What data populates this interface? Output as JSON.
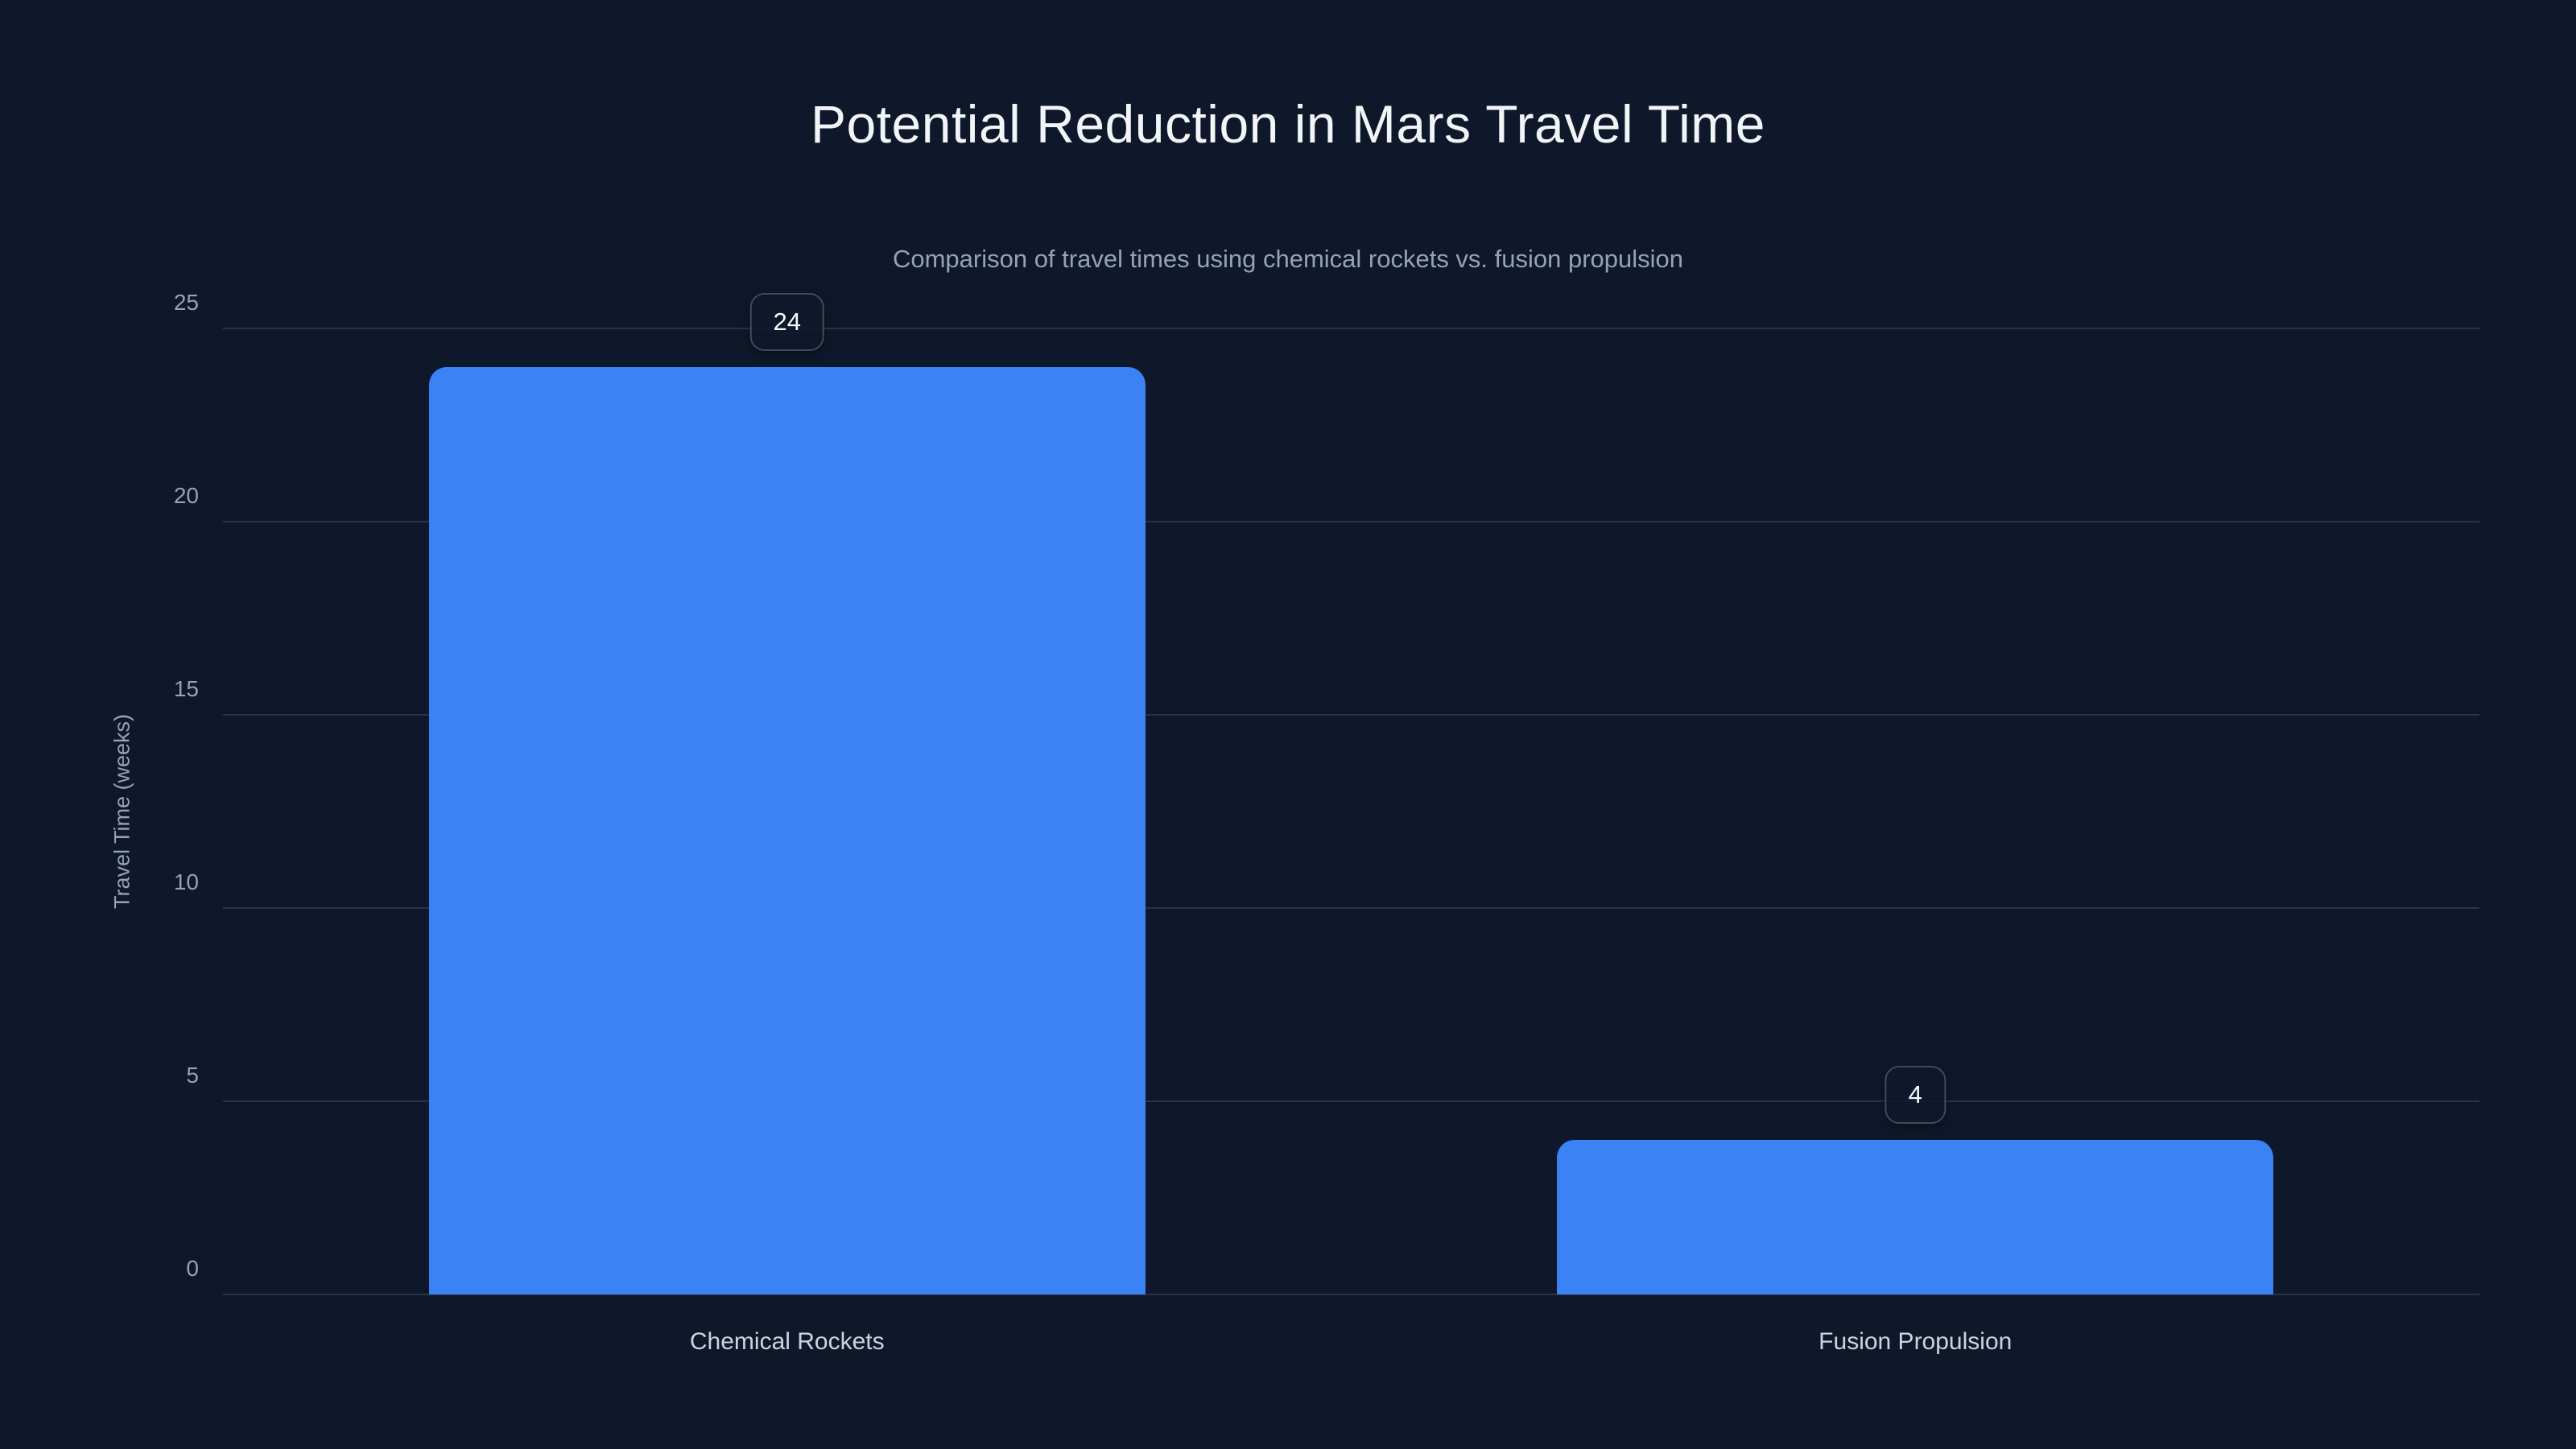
{
  "page": {
    "background": "#0f172a"
  },
  "chart_data": {
    "type": "bar",
    "title": "Potential Reduction in Mars Travel Time",
    "subtitle": "Comparison of travel times using chemical rockets vs. fusion propulsion",
    "categories": [
      "Chemical Rockets",
      "Fusion Propulsion"
    ],
    "values": [
      24,
      4
    ],
    "value_labels": [
      "24",
      "4"
    ],
    "xlabel": "",
    "ylabel": "Travel Time (weeks)",
    "ylim": [
      0,
      25
    ],
    "yticks": [
      0,
      5,
      10,
      15,
      20,
      25
    ],
    "grid": "horizontal",
    "legend": "none",
    "colors": {
      "background": "#0f172a",
      "bar": "#3b82f6",
      "gridline": "#2a3447",
      "title": "#f1f5f9",
      "subtitle": "#94a3b8",
      "tick_label": "#94a3b8",
      "axis_title": "#94a3b8",
      "category_label": "#cbd5e1",
      "badge_border": "#3e4a5e",
      "badge_text": "#f8fafc"
    }
  }
}
